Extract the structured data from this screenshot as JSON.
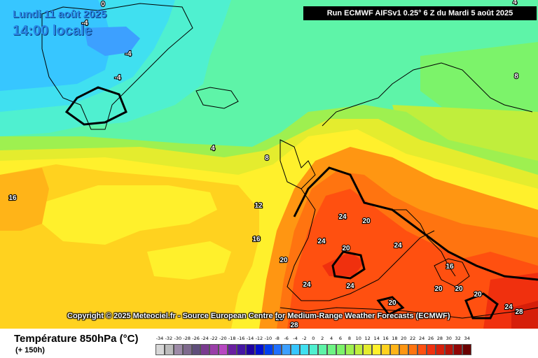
{
  "header": {
    "run_info": "Run ECMWF AIFSv1 0.25° 6 Z du Mardi 5 août 2025",
    "valid_date": "Lundi 11 août 2025",
    "valid_time": "14:00 locale"
  },
  "footer": {
    "variable_title": "Température 850hPa (°C)",
    "lead_time": "(+ 150h)",
    "copyright": "Copyright © 2025 Meteociel.fr - Source European Centre for Medium-Range Weather Forecasts (ECMWF)"
  },
  "legend": {
    "ticks": [
      "-34",
      "-32",
      "-30",
      "-28",
      "-26",
      "-24",
      "-22",
      "-20",
      "-18",
      "-16",
      "-14",
      "-12",
      "-10",
      "-8",
      "-6",
      "-4",
      "-2",
      "0",
      "2",
      "4",
      "6",
      "8",
      "10",
      "12",
      "14",
      "16",
      "18",
      "20",
      "22",
      "24",
      "26",
      "28",
      "30",
      "32",
      "34"
    ],
    "colors": [
      "#d7d7d7",
      "#bcbcbc",
      "#9d8aa7",
      "#7f6a8e",
      "#5f4e7b",
      "#7a3b8f",
      "#9a3ea8",
      "#b848c1",
      "#6a1fa0",
      "#4515a3",
      "#1f00a0",
      "#0010d0",
      "#0040f0",
      "#2070ff",
      "#3da0ff",
      "#37c6ff",
      "#40e0f0",
      "#4ff0d0",
      "#5ef4a8",
      "#6ef584",
      "#7cf36a",
      "#9ef050",
      "#c0ee3c",
      "#e4ec2e",
      "#fff02c",
      "#ffd21f",
      "#ffb418",
      "#ff9612",
      "#ff7410",
      "#ff5010",
      "#f0300e",
      "#d61f0a",
      "#b81208",
      "#900606",
      "#6a0202"
    ]
  },
  "contour_labels": [
    {
      "text": "0"
    },
    {
      "text": "-4"
    },
    {
      "text": "-4"
    },
    {
      "text": "-4"
    },
    {
      "text": "4"
    },
    {
      "text": "4"
    },
    {
      "text": "8"
    },
    {
      "text": "8"
    },
    {
      "text": "12"
    },
    {
      "text": "16"
    },
    {
      "text": "16"
    },
    {
      "text": "16"
    },
    {
      "text": "20"
    },
    {
      "text": "20"
    },
    {
      "text": "20"
    },
    {
      "text": "20"
    },
    {
      "text": "20"
    },
    {
      "text": "20"
    },
    {
      "text": "20"
    },
    {
      "text": "20"
    },
    {
      "text": "24"
    },
    {
      "text": "24"
    },
    {
      "text": "24"
    },
    {
      "text": "24"
    },
    {
      "text": "24"
    },
    {
      "text": "24"
    },
    {
      "text": "28"
    },
    {
      "text": "28"
    }
  ]
}
